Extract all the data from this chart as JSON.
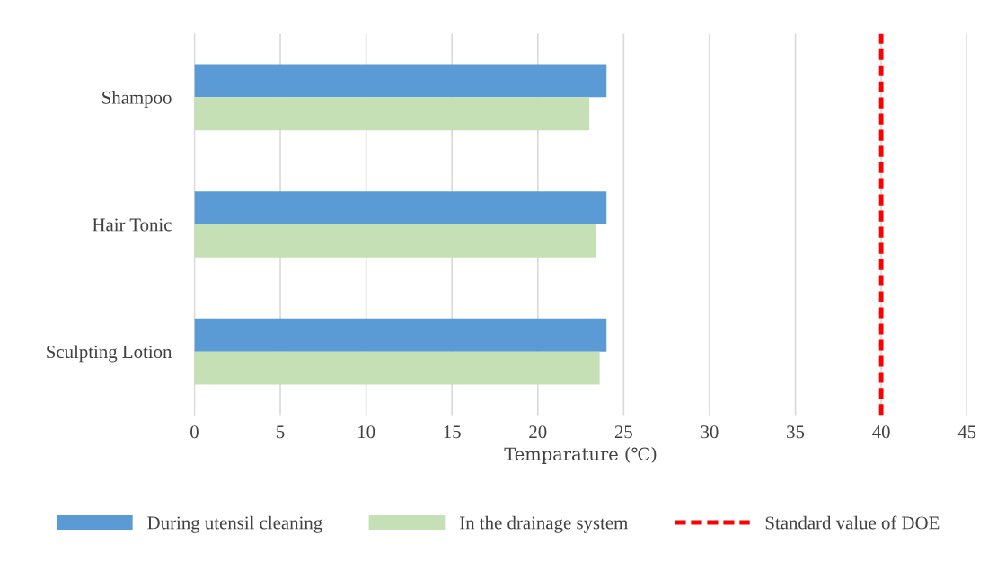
{
  "chart_data": {
    "type": "bar",
    "orientation": "horizontal",
    "categories": [
      "Shampoo",
      "Hair Tonic",
      "Sculpting Lotion"
    ],
    "series": [
      {
        "name": "During utensil cleaning",
        "color": "#5b9bd5",
        "values": [
          24,
          24,
          24
        ]
      },
      {
        "name": "In the drainage system",
        "color": "#c5e0b4",
        "values": [
          23,
          23.4,
          23.6
        ]
      }
    ],
    "xlabel": "Temparature (℃)",
    "xlim": [
      0,
      45
    ],
    "xticks": [
      0,
      5,
      10,
      15,
      20,
      25,
      30,
      35,
      40,
      45
    ],
    "grid": "x",
    "legend": "bottom",
    "ref_lines": [
      {
        "axis": "x",
        "value": 40,
        "label": "Standard value of DOE",
        "color": "#ff0000",
        "line_style": "dashed"
      }
    ]
  }
}
